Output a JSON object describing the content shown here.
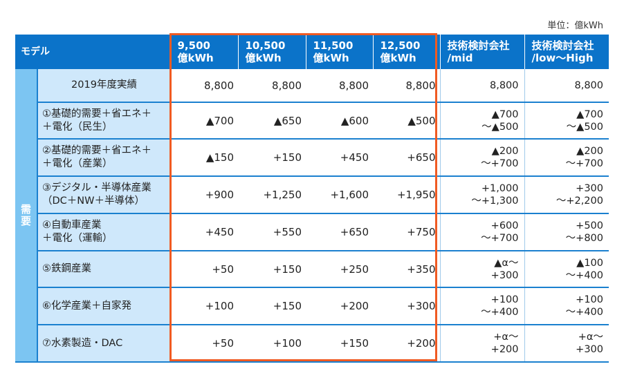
{
  "unit_label": "単位：億kWh",
  "side_label": "需\n要",
  "header": {
    "model": "モデル",
    "cols": [
      "9,500\n億kWh",
      "10,500\n億kWh",
      "11,500\n億kWh",
      "12,500\n億kWh"
    ],
    "tech_mid": "技術検討会社\n/mid",
    "tech_low": "技術検討会社\n/low～High"
  },
  "rows": [
    {
      "label": "2019年度実績",
      "values": [
        "8,800",
        "8,800",
        "8,800",
        "8,800"
      ],
      "mid": "8,800",
      "low": "8,800"
    },
    {
      "label": "①基礎的需要＋省エネ＋\n＋電化（民生）",
      "values": [
        "▲700",
        "▲650",
        "▲600",
        "▲500"
      ],
      "mid": "▲700\n～▲500",
      "low": "▲700\n～▲500"
    },
    {
      "label": "②基礎的需要＋省エネ＋\n＋電化（産業）",
      "values": [
        "▲150",
        "+150",
        "+450",
        "+650"
      ],
      "mid": "▲200\n～+700",
      "low": "▲200\n～+700"
    },
    {
      "label": "③デジタル・半導体産業\n（DC＋NW＋半導体）",
      "values": [
        "+900",
        "+1,250",
        "+1,600",
        "+1,950"
      ],
      "mid": "+1,000\n～+1,300",
      "low": "+300\n～+2,200"
    },
    {
      "label": "④自動車産業\n＋電化（運輸）",
      "values": [
        "+450",
        "+550",
        "+650",
        "+750"
      ],
      "mid": "+600\n～+700",
      "low": "+500\n～+800"
    },
    {
      "label": "⑤鉄鋼産業",
      "values": [
        "+50",
        "+150",
        "+250",
        "+350"
      ],
      "mid": "▲α～\n+300",
      "low": "▲100\n～+400"
    },
    {
      "label": "⑥化学産業＋自家発",
      "values": [
        "+100",
        "+150",
        "+200",
        "+300"
      ],
      "mid": "+100\n～+400",
      "low": "+100\n～+400"
    },
    {
      "label": "⑦水素製造・DAC",
      "values": [
        "+50",
        "+100",
        "+150",
        "+200"
      ],
      "mid": "+α～\n+200",
      "low": "+α～\n+300"
    }
  ]
}
